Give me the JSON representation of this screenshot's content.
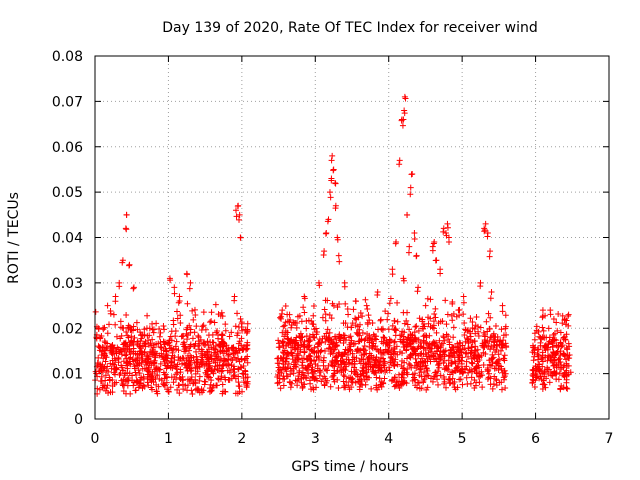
{
  "chart_data": {
    "type": "scatter",
    "title": "Day 139 of 2020, Rate Of TEC Index for receiver wind",
    "xlabel": "GPS time / hours",
    "ylabel": "ROTI / TECUs",
    "xlim": [
      0,
      7
    ],
    "ylim": [
      0,
      0.08
    ],
    "xticks": [
      "0",
      "1",
      "2",
      "3",
      "4",
      "5",
      "6",
      "7"
    ],
    "yticks": [
      "0",
      "0.01",
      "0.02",
      "0.03",
      "0.04",
      "0.05",
      "0.06",
      "0.07",
      "0.08"
    ],
    "grid": true,
    "marker": "+",
    "color": "#ff0000",
    "series": [
      {
        "name": "ROTI",
        "segments": [
          {
            "x_range": [
              0.0,
              2.08
            ],
            "base": 0.011,
            "spread": 0.008
          },
          {
            "x_range": [
              2.48,
              5.6
            ],
            "base": 0.012,
            "spread": 0.008
          },
          {
            "x_range": [
              5.95,
              6.48
            ],
            "base": 0.011,
            "spread": 0.007
          }
        ],
        "peaks": [
          {
            "x": 0.43,
            "y": 0.045
          },
          {
            "x": 0.42,
            "y": 0.042
          },
          {
            "x": 0.38,
            "y": 0.035
          },
          {
            "x": 0.47,
            "y": 0.034
          },
          {
            "x": 0.33,
            "y": 0.03
          },
          {
            "x": 0.53,
            "y": 0.029
          },
          {
            "x": 0.28,
            "y": 0.027
          },
          {
            "x": 1.02,
            "y": 0.031
          },
          {
            "x": 1.08,
            "y": 0.029
          },
          {
            "x": 1.25,
            "y": 0.032
          },
          {
            "x": 1.3,
            "y": 0.03
          },
          {
            "x": 1.15,
            "y": 0.027
          },
          {
            "x": 1.9,
            "y": 0.027
          },
          {
            "x": 1.92,
            "y": 0.046
          },
          {
            "x": 1.95,
            "y": 0.047
          },
          {
            "x": 1.97,
            "y": 0.045
          },
          {
            "x": 1.98,
            "y": 0.04
          },
          {
            "x": 2.0,
            "y": 0.021
          },
          {
            "x": 3.15,
            "y": 0.041
          },
          {
            "x": 3.18,
            "y": 0.044
          },
          {
            "x": 3.2,
            "y": 0.05
          },
          {
            "x": 3.22,
            "y": 0.053
          },
          {
            "x": 3.23,
            "y": 0.058
          },
          {
            "x": 3.25,
            "y": 0.055
          },
          {
            "x": 3.27,
            "y": 0.052
          },
          {
            "x": 3.28,
            "y": 0.047
          },
          {
            "x": 3.3,
            "y": 0.04
          },
          {
            "x": 3.12,
            "y": 0.037
          },
          {
            "x": 3.32,
            "y": 0.036
          },
          {
            "x": 3.05,
            "y": 0.03
          },
          {
            "x": 3.4,
            "y": 0.03
          },
          {
            "x": 4.05,
            "y": 0.033
          },
          {
            "x": 4.1,
            "y": 0.039
          },
          {
            "x": 4.15,
            "y": 0.057
          },
          {
            "x": 4.18,
            "y": 0.066
          },
          {
            "x": 4.2,
            "y": 0.066
          },
          {
            "x": 4.21,
            "y": 0.068
          },
          {
            "x": 4.22,
            "y": 0.071
          },
          {
            "x": 4.25,
            "y": 0.045
          },
          {
            "x": 4.3,
            "y": 0.051
          },
          {
            "x": 4.32,
            "y": 0.054
          },
          {
            "x": 4.35,
            "y": 0.041
          },
          {
            "x": 4.28,
            "y": 0.038
          },
          {
            "x": 4.38,
            "y": 0.036
          },
          {
            "x": 4.2,
            "y": 0.031
          },
          {
            "x": 4.4,
            "y": 0.029
          },
          {
            "x": 4.6,
            "y": 0.038
          },
          {
            "x": 4.62,
            "y": 0.039
          },
          {
            "x": 4.65,
            "y": 0.035
          },
          {
            "x": 4.7,
            "y": 0.033
          },
          {
            "x": 4.75,
            "y": 0.042
          },
          {
            "x": 4.78,
            "y": 0.041
          },
          {
            "x": 4.8,
            "y": 0.043
          },
          {
            "x": 4.82,
            "y": 0.04
          },
          {
            "x": 5.25,
            "y": 0.03
          },
          {
            "x": 5.3,
            "y": 0.042
          },
          {
            "x": 5.32,
            "y": 0.043
          },
          {
            "x": 5.35,
            "y": 0.041
          },
          {
            "x": 5.38,
            "y": 0.037
          },
          {
            "x": 5.4,
            "y": 0.028
          },
          {
            "x": 6.1,
            "y": 0.024
          },
          {
            "x": 6.2,
            "y": 0.024
          },
          {
            "x": 6.45,
            "y": 0.023
          },
          {
            "x": 6.4,
            "y": 0.022
          },
          {
            "x": 0.05,
            "y": 0.02
          },
          {
            "x": 2.08,
            "y": 0.021
          },
          {
            "x": 2.55,
            "y": 0.024
          },
          {
            "x": 2.65,
            "y": 0.023
          },
          {
            "x": 2.85,
            "y": 0.027
          },
          {
            "x": 3.55,
            "y": 0.026
          },
          {
            "x": 3.7,
            "y": 0.025
          },
          {
            "x": 3.85,
            "y": 0.028
          },
          {
            "x": 5.55,
            "y": 0.025
          },
          {
            "x": 5.02,
            "y": 0.027
          },
          {
            "x": 4.95,
            "y": 0.024
          }
        ]
      }
    ]
  }
}
